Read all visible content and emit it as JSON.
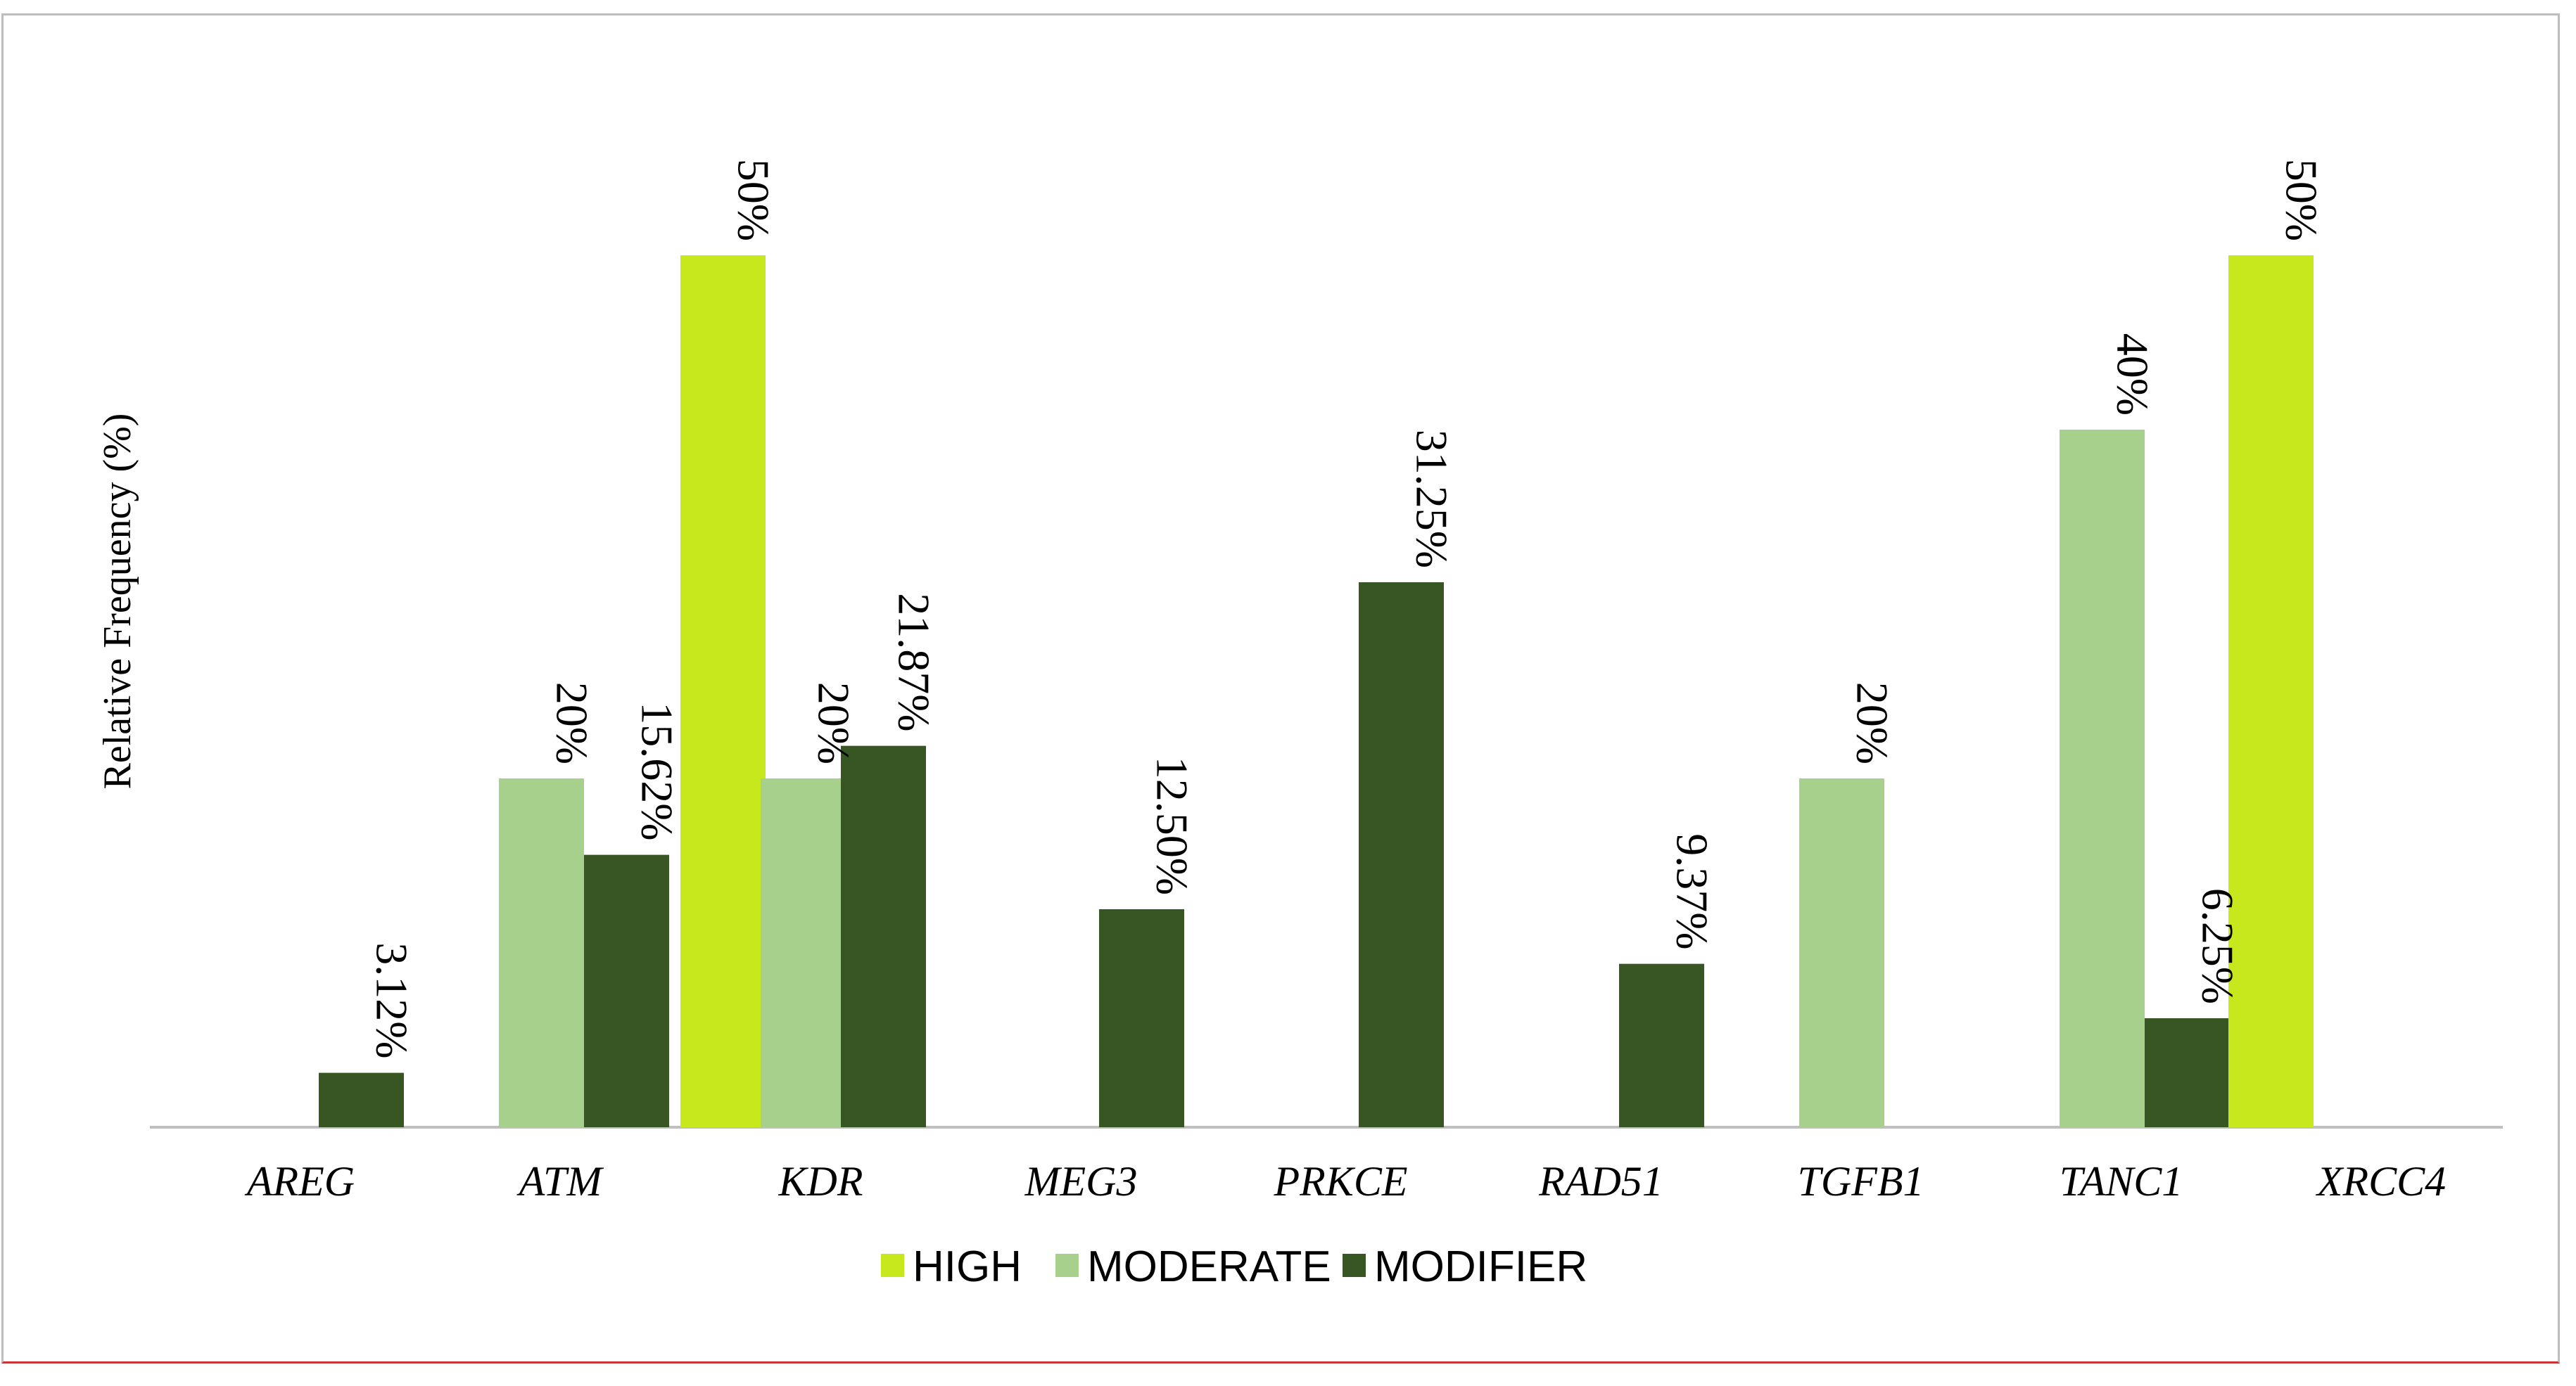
{
  "chart_data": {
    "type": "bar",
    "title": "",
    "xlabel": "",
    "ylabel": "Relative Frequency  (%)",
    "ylim": [
      0,
      60
    ],
    "grid": false,
    "legend_position": "bottom",
    "categories": [
      "AREG",
      "ATM",
      "KDR",
      "MEG3",
      "PRKCE",
      "RAD51",
      "TGFB1",
      "TANC1",
      "XRCC4"
    ],
    "series": [
      {
        "name": "HIGH",
        "color": "#c8e81e",
        "values": [
          null,
          null,
          50,
          null,
          null,
          null,
          null,
          null,
          50
        ],
        "labels": [
          null,
          null,
          "50%",
          null,
          null,
          null,
          null,
          null,
          "50%"
        ]
      },
      {
        "name": "MODERATE",
        "color": "#a8d08d",
        "values": [
          null,
          20,
          20,
          null,
          null,
          null,
          20,
          40,
          null
        ],
        "labels": [
          null,
          "20%",
          "20%",
          null,
          null,
          null,
          "20%",
          "40%",
          null
        ]
      },
      {
        "name": "MODIFIER",
        "color": "#375623",
        "values": [
          3.12,
          15.62,
          21.87,
          12.5,
          31.25,
          9.37,
          null,
          6.25,
          null
        ],
        "labels": [
          "3.12%",
          "15.62%",
          "21.87%",
          "12.50%",
          "31.25%",
          "9.37%",
          null,
          "6.25%",
          null
        ]
      }
    ]
  }
}
